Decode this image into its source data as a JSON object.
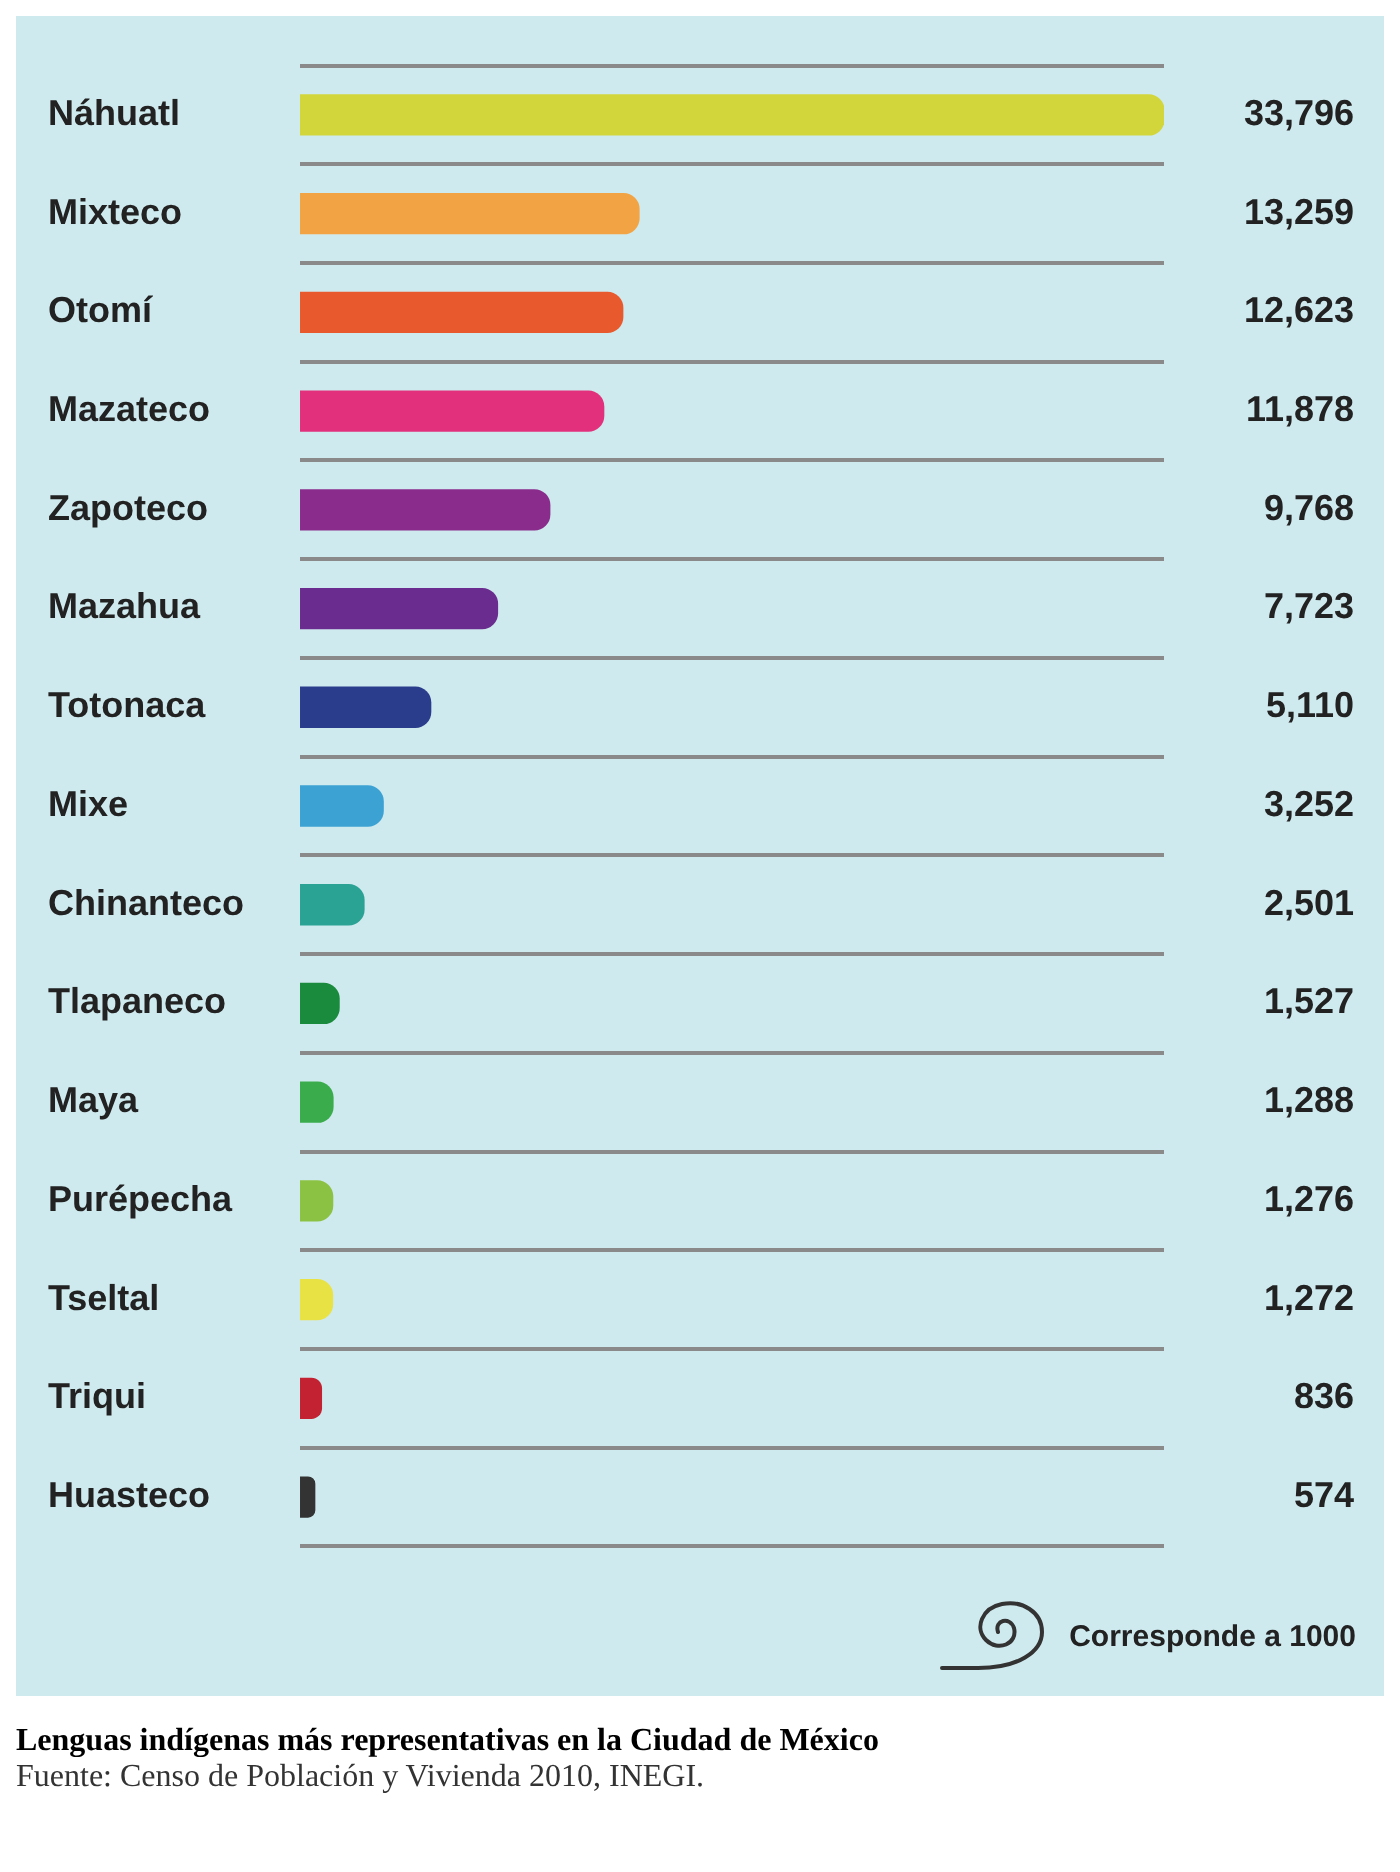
{
  "chart_data": {
    "type": "bar",
    "orientation": "horizontal",
    "title": "Lenguas indígenas más representativas en la Ciudad de México",
    "categories": [
      "Náhuatl",
      "Mixteco",
      "Otomí",
      "Mazateco",
      "Zapoteco",
      "Mazahua",
      "Totonaca",
      "Mixe",
      "Chinanteco",
      "Tlapaneco",
      "Maya",
      "Purépecha",
      "Tseltal",
      "Triqui",
      "Huasteco"
    ],
    "values": [
      33796,
      13259,
      12623,
      11878,
      9768,
      7723,
      5110,
      3252,
      2501,
      1527,
      1288,
      1276,
      1272,
      836,
      574
    ],
    "colors": [
      "#d2d63a",
      "#f2a444",
      "#e85a2e",
      "#e2307c",
      "#8a2c8c",
      "#6a2c8e",
      "#2a3c8c",
      "#3ca2d4",
      "#2aa294",
      "#1a8a3c",
      "#3aac4c",
      "#8cc244",
      "#e8e244",
      "#c22232",
      "#333333"
    ],
    "value_labels": [
      "33,796",
      "13,259",
      "12,623",
      "11,878",
      "9,768",
      "7,723",
      "5,110",
      "3,252",
      "2,501",
      "1,527",
      "1,288",
      "1,276",
      "1,272",
      "836",
      "574"
    ],
    "grid": "y",
    "legend": false,
    "annotations": [
      "Corresponde a 1000",
      "Fuente: Censo de Población y Vivienda 2010, INEGI."
    ]
  }
}
